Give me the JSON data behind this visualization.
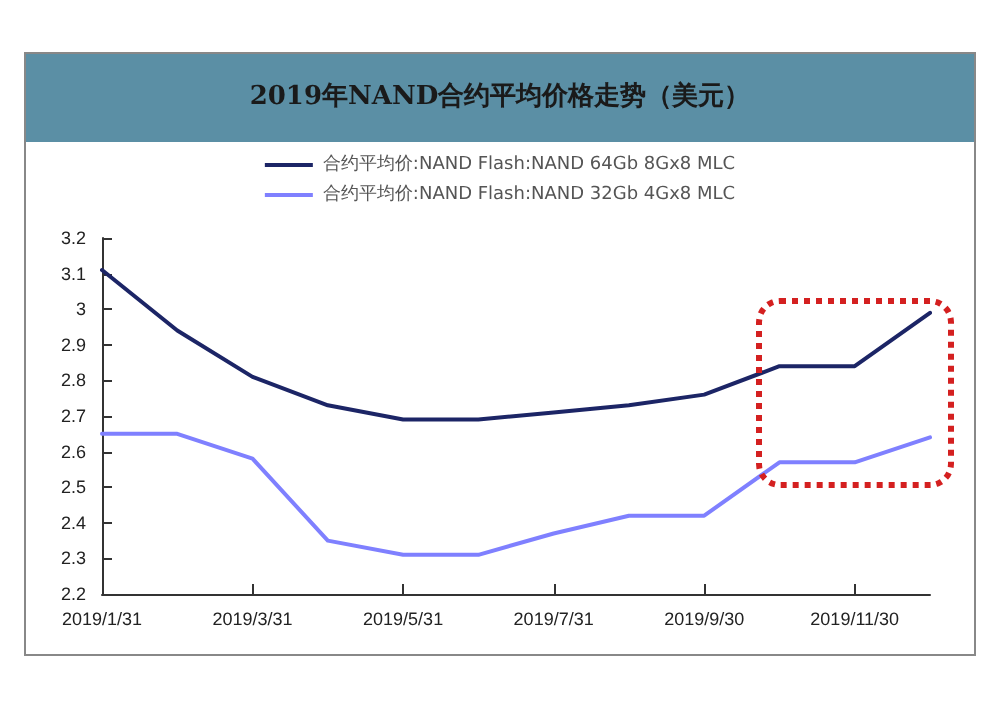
{
  "chart_data": {
    "type": "line",
    "title": "2019年NAND合约平均价格走势（美元）",
    "categories": [
      "2019/1/31",
      null,
      "2019/3/31",
      null,
      "2019/5/31",
      null,
      "2019/7/31",
      null,
      "2019/9/30",
      null,
      "2019/11/30",
      null
    ],
    "series": [
      {
        "name": "合约平均价:NAND Flash:NAND 64Gb 8Gx8 MLC",
        "color": "#1c2566",
        "values": [
          3.11,
          2.94,
          2.81,
          2.73,
          2.69,
          2.69,
          2.71,
          2.73,
          2.76,
          2.84,
          2.84,
          2.99
        ]
      },
      {
        "name": "合约平均价:NAND Flash:NAND 32Gb 4Gx8 MLC",
        "color": "#7f80ff",
        "values": [
          2.65,
          2.65,
          2.58,
          2.35,
          2.31,
          2.31,
          2.37,
          2.42,
          2.42,
          2.57,
          2.57,
          2.64
        ]
      }
    ],
    "ylim": [
      2.2,
      3.2
    ],
    "yticks": [
      2.2,
      2.3,
      2.4,
      2.5,
      2.6,
      2.7,
      2.8,
      2.9,
      3,
      3.1,
      3.2
    ],
    "grid": false,
    "legend": "top",
    "marker": "none",
    "line_style": "solid"
  }
}
